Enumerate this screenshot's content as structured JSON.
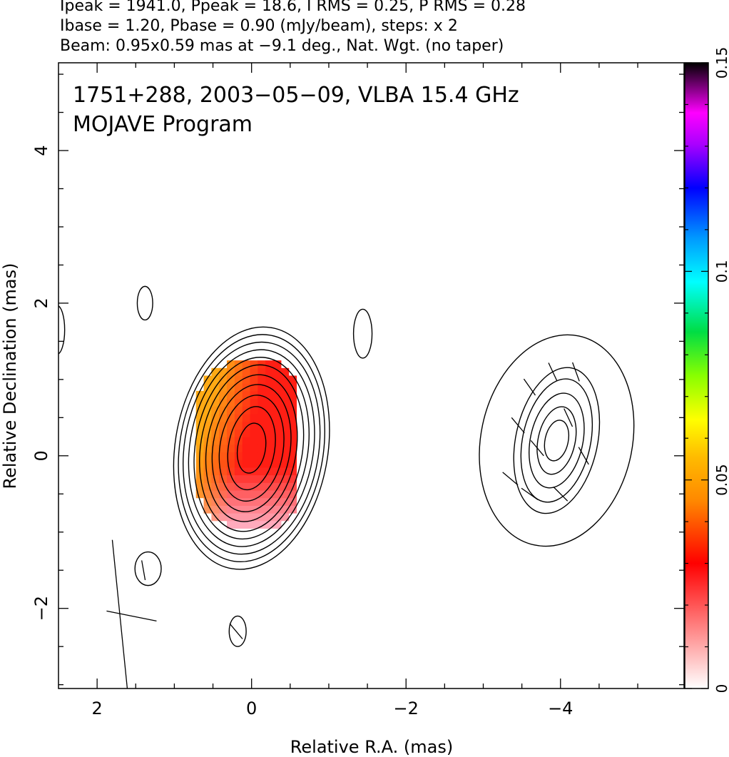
{
  "header": {
    "line1": "Ipeak = 1941.0, Ppeak = 18.6, I RMS = 0.25, P RMS = 0.28",
    "line2": "Ibase = 1.20, Pbase = 0.90 (mJy/beam), steps: x 2",
    "line3": "Beam: 0.95x0.59 mas at −9.1 deg., Nat. Wgt. (no taper)"
  },
  "chart_data": {
    "type": "heatmap",
    "title": "1751+288, 2003−05−09, VLBA 15.4 GHz",
    "subtitle": "MOJAVE Program",
    "xlabel": "Relative R.A. (mas)",
    "ylabel": "Relative Declination (mas)",
    "xlim": [
      2.5,
      -5.6
    ],
    "ylim": [
      -3.05,
      5.15
    ],
    "xticks": [
      2,
      0,
      -2,
      -4
    ],
    "xtick_labels": [
      "2",
      "0",
      "−2",
      "−4"
    ],
    "yticks": [
      -2,
      0,
      2,
      4
    ],
    "ytick_labels": [
      "−2",
      "0",
      "2",
      "4"
    ],
    "colorbar": {
      "min": 0,
      "max": 0.15,
      "ticks": [
        0,
        0.05,
        0.1,
        0.15
      ],
      "tick_labels": [
        "0",
        "0.05",
        "0.1",
        "0.15"
      ]
    },
    "contour_groups": [
      {
        "name": "core",
        "cx": 0.0,
        "cy": 0.1,
        "angle": -9.1,
        "rx": [
          0.99,
          0.93,
          0.87,
          0.8,
          0.73,
          0.66,
          0.58,
          0.5,
          0.41,
          0.3,
          0.18
        ],
        "ry": [
          1.6,
          1.5,
          1.4,
          1.3,
          1.2,
          1.1,
          0.97,
          0.84,
          0.7,
          0.55,
          0.33
        ]
      },
      {
        "name": "jet-component",
        "cx": -3.95,
        "cy": 0.2,
        "angle": -12,
        "rx": [
          0.98,
          0.53,
          0.44,
          0.34,
          0.24,
          0.15
        ],
        "ry": [
          1.4,
          0.97,
          0.82,
          0.63,
          0.45,
          0.27
        ]
      },
      {
        "name": "noise-1",
        "cx": 1.38,
        "cy": 2.0,
        "angle": 0,
        "rx": [
          0.1
        ],
        "ry": [
          0.22
        ]
      },
      {
        "name": "noise-2",
        "cx": -1.44,
        "cy": 1.6,
        "angle": 0,
        "rx": [
          0.12
        ],
        "ry": [
          0.32
        ]
      },
      {
        "name": "noise-3",
        "cx": 1.34,
        "cy": -1.48,
        "angle": 0,
        "rx": [
          0.17
        ],
        "ry": [
          0.22
        ]
      },
      {
        "name": "noise-4",
        "cx": 0.18,
        "cy": -2.3,
        "angle": 0,
        "rx": [
          0.11
        ],
        "ry": [
          0.2
        ]
      },
      {
        "name": "noise-edge",
        "cx": 2.52,
        "cy": 1.65,
        "angle": 0,
        "rx": [
          0.1
        ],
        "ry": [
          0.32
        ]
      }
    ],
    "polarization_region": {
      "x_left": 0.72,
      "x_right": -0.55,
      "y_bottom": -0.95,
      "y_top": 1.25
    },
    "polarization_vectors_sample": [
      [
        -3.45,
        0.4,
        40
      ],
      [
        -3.6,
        0.9,
        35
      ],
      [
        -3.9,
        1.1,
        25
      ],
      [
        -4.2,
        1.1,
        20
      ],
      [
        -3.35,
        -0.3,
        50
      ],
      [
        -3.6,
        -0.5,
        55
      ],
      [
        -4.0,
        -0.5,
        45
      ],
      [
        -4.3,
        0.0,
        30
      ],
      [
        -3.7,
        0.1,
        40
      ],
      [
        -4.1,
        0.5,
        25
      ],
      [
        1.4,
        -1.5,
        10
      ],
      [
        0.2,
        -2.3,
        40
      ]
    ],
    "beam": {
      "x": 1.6,
      "y": -2.1,
      "major_mas": 0.95,
      "minor_mas": 0.59,
      "pa_deg": -9.1
    },
    "grid": false
  }
}
